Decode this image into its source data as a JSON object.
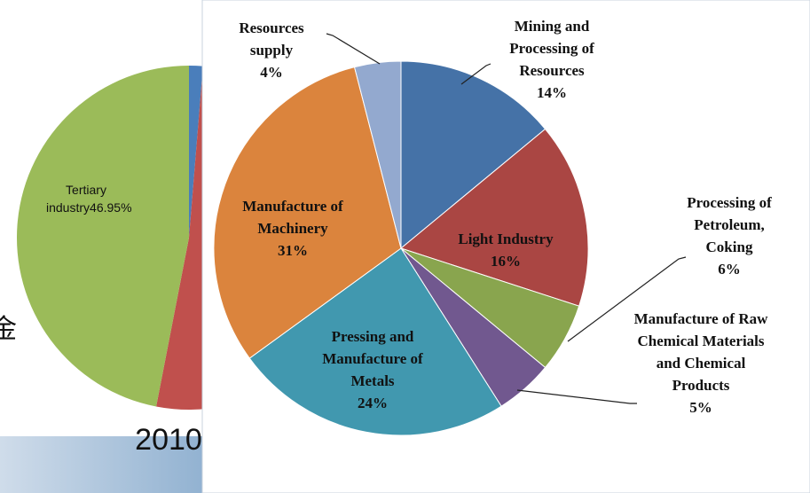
{
  "chart_data": [
    {
      "type": "pie",
      "categories": [
        null,
        null,
        "Tertiary industry"
      ],
      "values": [
        1.3,
        51.75,
        46.95
      ],
      "value_labels": [
        null,
        null,
        "46.95%"
      ],
      "colors": [
        "#4a7ebb",
        "#c0504d",
        "#9bbb59"
      ],
      "annotations": [
        "2010",
        "金"
      ]
    },
    {
      "type": "pie",
      "categories": [
        "Mining and Processing of Resources",
        "Light Industry",
        "Processing of Petroleum, Coking",
        "Manufacture of Raw Chemical Materials and Chemical Products",
        "Pressing and Manufacture of Metals",
        "Manufacture of Machinery",
        "Resources supply"
      ],
      "values": [
        14,
        16,
        6,
        5,
        24,
        31,
        4
      ],
      "value_labels": [
        "14%",
        "16%",
        "6%",
        "5%",
        "24%",
        "31%",
        "4%"
      ],
      "colors": [
        "#4572a7",
        "#aa4643",
        "#89a54e",
        "#71588f",
        "#4198af",
        "#db843d",
        "#93a9cf"
      ]
    }
  ]
}
